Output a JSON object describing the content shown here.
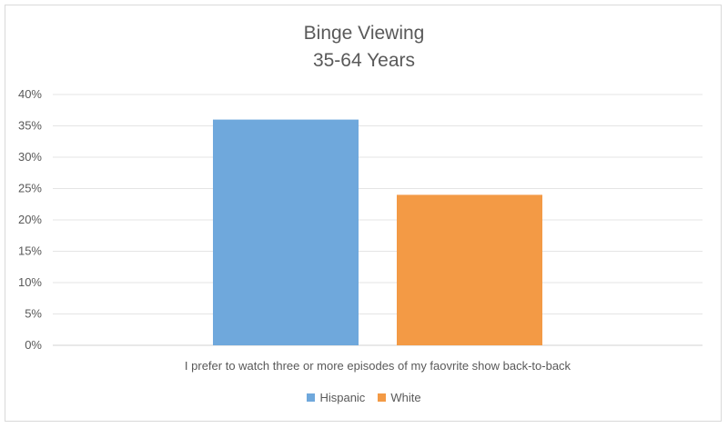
{
  "chart_data": {
    "type": "bar",
    "title": "Binge Viewing",
    "subtitle": "35-64 Years",
    "categories": [
      "I prefer to watch three or more episodes of my faovrite show back-to-back"
    ],
    "series": [
      {
        "name": "Hispanic",
        "values": [
          36
        ],
        "color": "#6fa8dc"
      },
      {
        "name": "White",
        "values": [
          24
        ],
        "color": "#f39a45"
      }
    ],
    "yticks": [
      "0%",
      "5%",
      "10%",
      "15%",
      "20%",
      "25%",
      "30%",
      "35%",
      "40%"
    ],
    "ylim": [
      0,
      40
    ],
    "grid": true,
    "legend_position": "bottom",
    "xlabel": "",
    "ylabel": ""
  }
}
